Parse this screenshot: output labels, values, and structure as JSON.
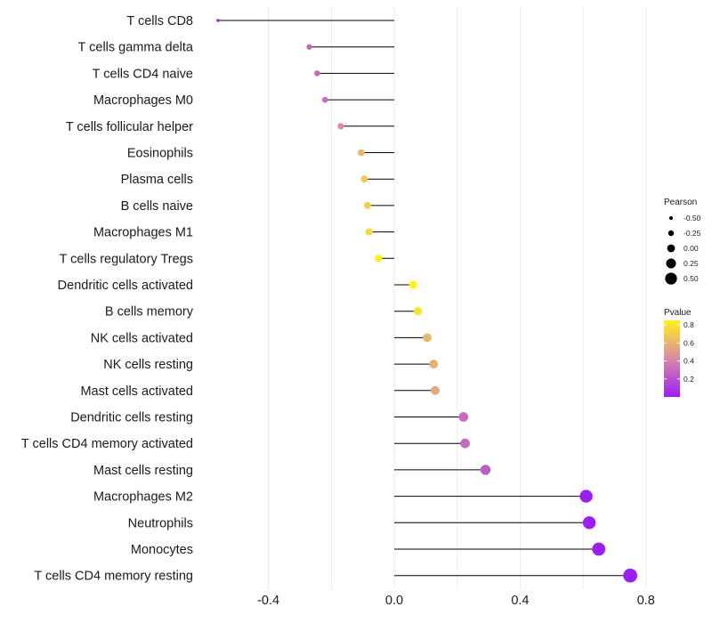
{
  "chart_data": {
    "type": "lollipop",
    "orientation": "horizontal",
    "title": "",
    "xlabel": "",
    "ylabel": "",
    "xlim": [
      -0.6,
      0.8
    ],
    "xticks": [
      -0.4,
      0.0,
      0.4,
      0.8
    ],
    "xtick_labels": [
      "-0.4",
      "0.0",
      "0.4",
      "0.8"
    ],
    "grid": true,
    "categories": [
      "T cells CD8",
      "T cells gamma delta",
      "T cells CD4 naive",
      "Macrophages M0",
      "T cells follicular helper",
      "Eosinophils",
      "Plasma cells",
      "B cells naive",
      "Macrophages M1",
      "T cells regulatory  Tregs",
      "Dendritic cells activated",
      "B cells memory",
      "NK cells activated",
      "NK cells resting",
      "Mast cells activated",
      "Dendritic cells resting",
      "T cells CD4 memory activated",
      "Mast cells resting",
      "Macrophages M2",
      "Neutrophils",
      "Monocytes",
      "T cells CD4 memory resting"
    ],
    "pearson": [
      -0.56,
      -0.27,
      -0.245,
      -0.22,
      -0.17,
      -0.105,
      -0.095,
      -0.085,
      -0.08,
      -0.05,
      0.06,
      0.075,
      0.105,
      0.125,
      0.13,
      0.22,
      0.225,
      0.29,
      0.61,
      0.62,
      0.65,
      0.75
    ],
    "pvalue": [
      0.02,
      0.28,
      0.3,
      0.32,
      0.45,
      0.62,
      0.68,
      0.72,
      0.74,
      0.86,
      0.86,
      0.8,
      0.62,
      0.58,
      0.55,
      0.3,
      0.3,
      0.25,
      0.0001,
      0.0001,
      0.0001,
      0.0001
    ],
    "legend_size": {
      "title": "Pearson",
      "values": [
        -0.5,
        -0.25,
        0.0,
        0.25,
        0.5
      ],
      "labels": [
        "-0.50",
        "-0.25",
        "0.00",
        "0.25",
        "0.50"
      ]
    },
    "legend_color": {
      "title": "Pvalue",
      "range": [
        0.0,
        0.85
      ],
      "ticks": [
        0.2,
        0.4,
        0.6,
        0.8
      ],
      "labels": [
        "0.2",
        "0.4",
        "0.6",
        "0.8"
      ],
      "low_color": "#9b1ef4",
      "mid_color": "#d989a6",
      "high_color": "#fff21a"
    },
    "colors": {
      "grid": "#ebebeb",
      "segment": "#000000"
    }
  }
}
